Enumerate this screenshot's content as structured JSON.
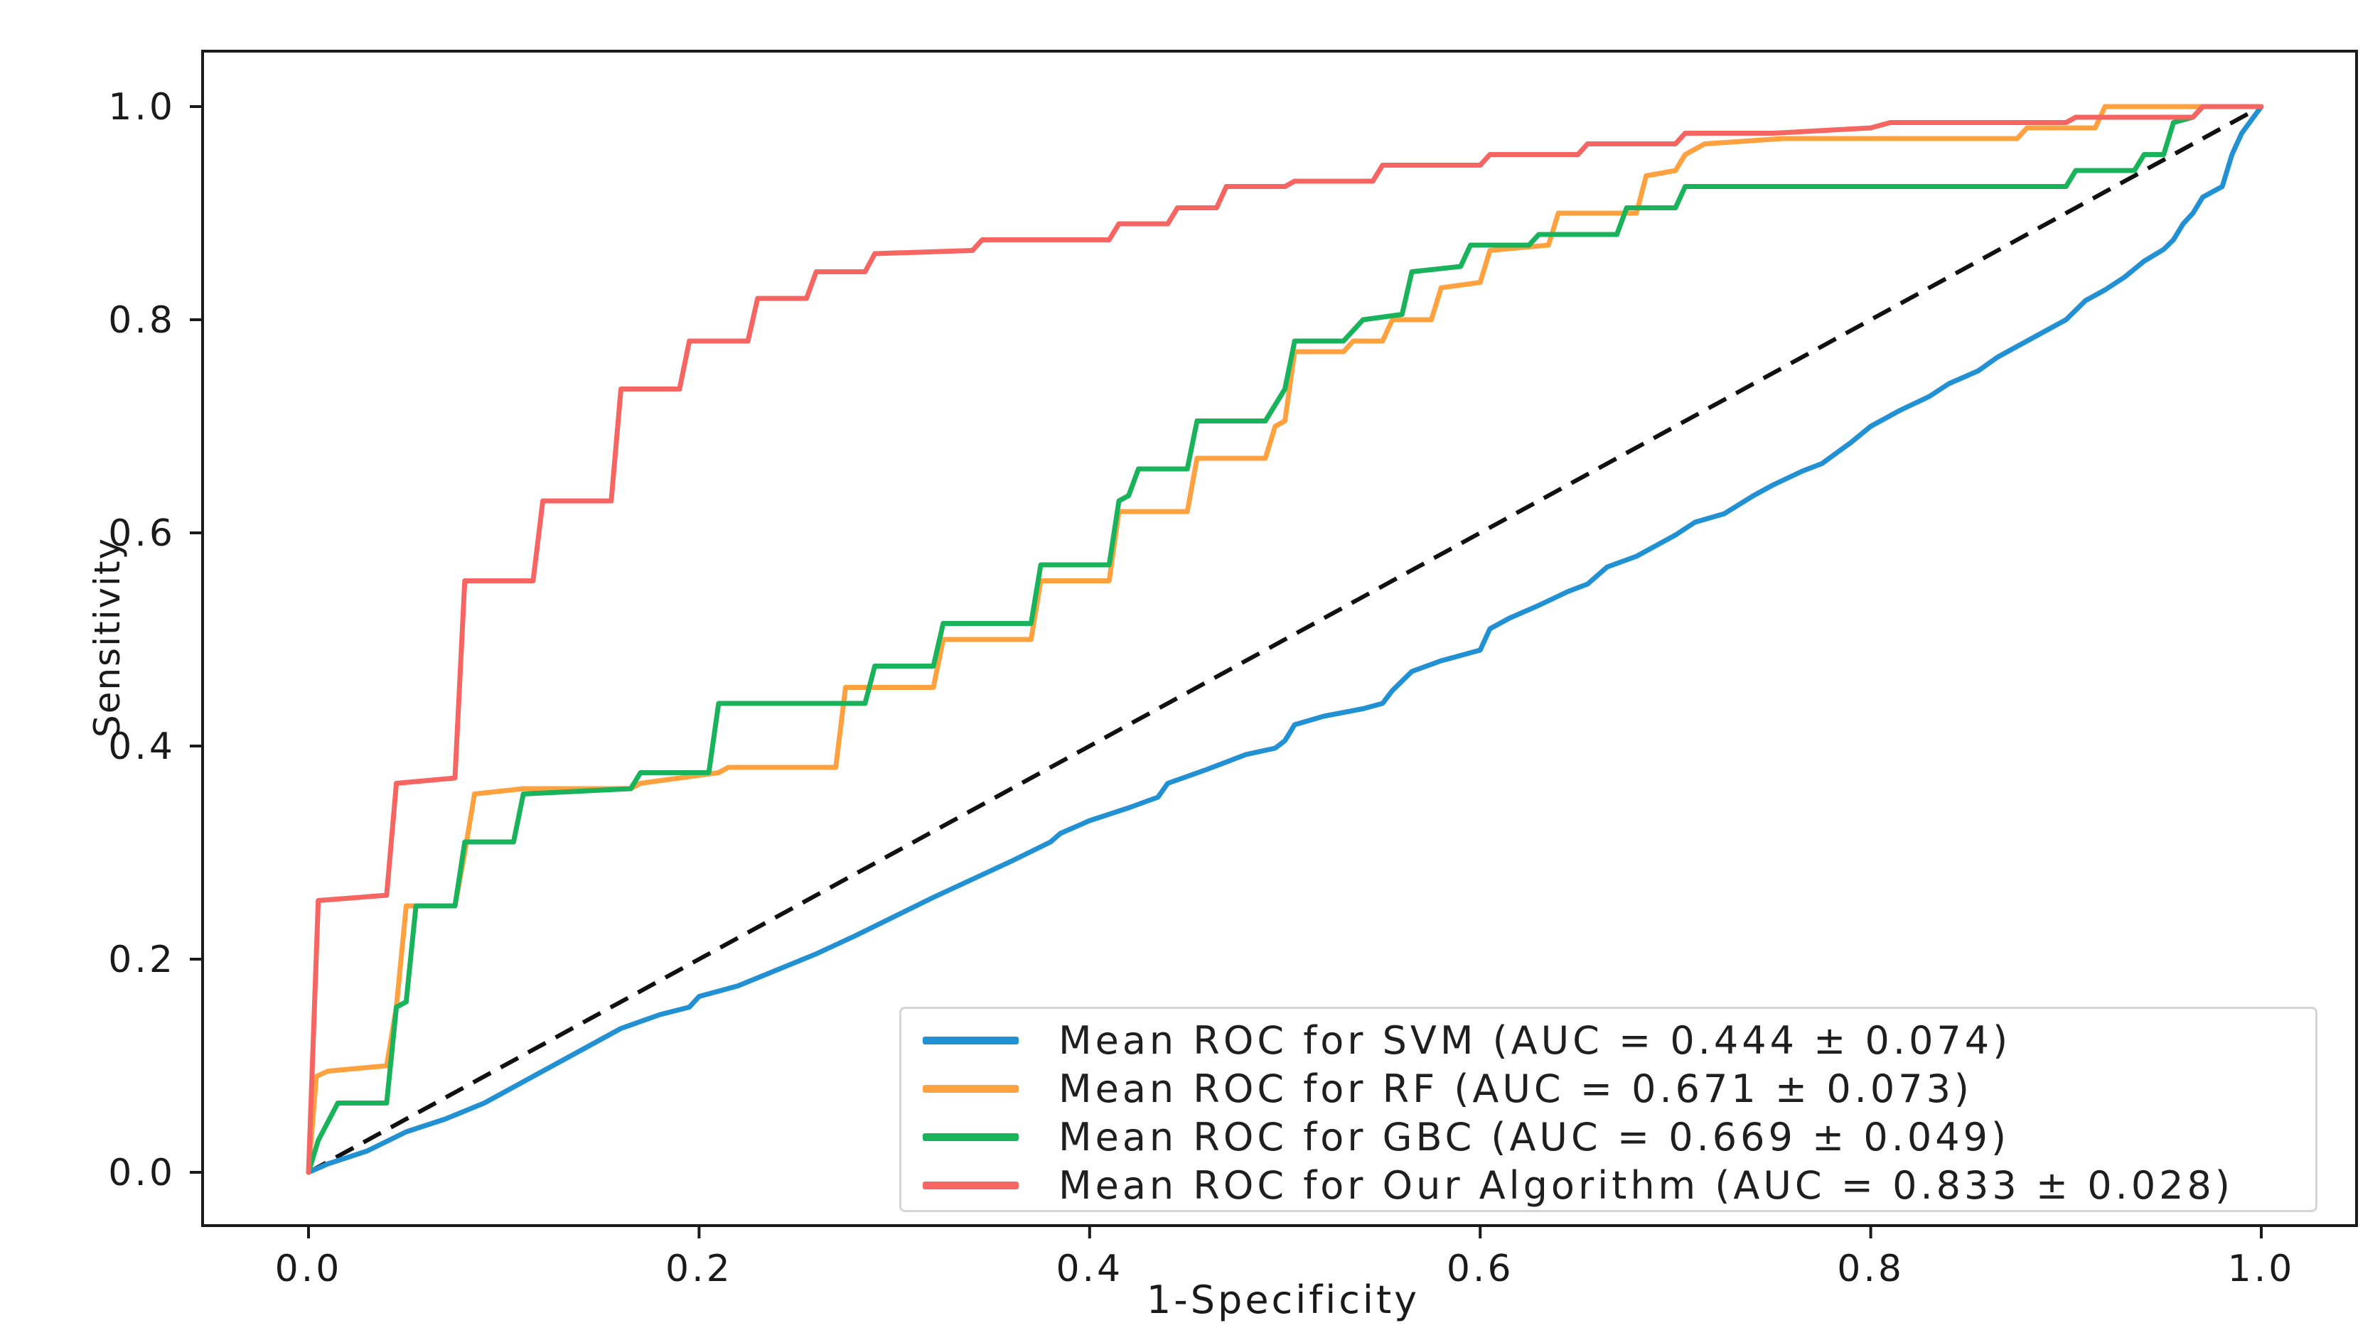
{
  "figure": {
    "background_color": "#ffffff",
    "spine_color": "#1a1a1a"
  },
  "axes": {
    "xlabel": "1-Specificity",
    "ylabel": "Sensitivity"
  },
  "chart_data": {
    "type": "line",
    "subtype": "roc-curves",
    "title": "",
    "xlabel": "1-Specificity",
    "ylabel": "Sensitivity",
    "xlim": [
      0,
      1
    ],
    "ylim": [
      0,
      1
    ],
    "xticks": [
      0.0,
      0.2,
      0.4,
      0.6,
      0.8,
      1.0
    ],
    "yticks": [
      0.0,
      0.2,
      0.4,
      0.6,
      0.8,
      1.0
    ],
    "grid": false,
    "legend_position": "lower right",
    "reference_line": {
      "name": "chance-diagonal",
      "style": "dashed",
      "color": "#111111",
      "points": [
        [
          0,
          0
        ],
        [
          1,
          1
        ]
      ]
    },
    "series": [
      {
        "name": "SVM",
        "label": "Mean ROC for SVM (AUC = 0.444 ± 0.074)",
        "auc": 0.444,
        "auc_std": 0.074,
        "color": "#2291d3",
        "points": [
          [
            0,
            0
          ],
          [
            0.01,
            0.008
          ],
          [
            0.03,
            0.02
          ],
          [
            0.05,
            0.038
          ],
          [
            0.07,
            0.05
          ],
          [
            0.09,
            0.065
          ],
          [
            0.1,
            0.075
          ],
          [
            0.12,
            0.095
          ],
          [
            0.14,
            0.115
          ],
          [
            0.16,
            0.135
          ],
          [
            0.18,
            0.148
          ],
          [
            0.195,
            0.155
          ],
          [
            0.2,
            0.165
          ],
          [
            0.22,
            0.175
          ],
          [
            0.24,
            0.19
          ],
          [
            0.26,
            0.205
          ],
          [
            0.28,
            0.222
          ],
          [
            0.3,
            0.24
          ],
          [
            0.32,
            0.258
          ],
          [
            0.34,
            0.275
          ],
          [
            0.36,
            0.292
          ],
          [
            0.38,
            0.31
          ],
          [
            0.385,
            0.318
          ],
          [
            0.4,
            0.33
          ],
          [
            0.42,
            0.342
          ],
          [
            0.435,
            0.352
          ],
          [
            0.44,
            0.365
          ],
          [
            0.46,
            0.378
          ],
          [
            0.48,
            0.392
          ],
          [
            0.495,
            0.398
          ],
          [
            0.5,
            0.405
          ],
          [
            0.505,
            0.42
          ],
          [
            0.52,
            0.428
          ],
          [
            0.54,
            0.435
          ],
          [
            0.55,
            0.44
          ],
          [
            0.555,
            0.452
          ],
          [
            0.565,
            0.47
          ],
          [
            0.58,
            0.48
          ],
          [
            0.6,
            0.49
          ],
          [
            0.605,
            0.51
          ],
          [
            0.615,
            0.52
          ],
          [
            0.63,
            0.532
          ],
          [
            0.645,
            0.545
          ],
          [
            0.655,
            0.552
          ],
          [
            0.665,
            0.568
          ],
          [
            0.68,
            0.578
          ],
          [
            0.7,
            0.598
          ],
          [
            0.71,
            0.61
          ],
          [
            0.725,
            0.618
          ],
          [
            0.74,
            0.635
          ],
          [
            0.75,
            0.645
          ],
          [
            0.765,
            0.658
          ],
          [
            0.775,
            0.665
          ],
          [
            0.79,
            0.685
          ],
          [
            0.8,
            0.7
          ],
          [
            0.815,
            0.715
          ],
          [
            0.83,
            0.728
          ],
          [
            0.84,
            0.74
          ],
          [
            0.855,
            0.752
          ],
          [
            0.865,
            0.765
          ],
          [
            0.875,
            0.775
          ],
          [
            0.89,
            0.79
          ],
          [
            0.9,
            0.8
          ],
          [
            0.91,
            0.818
          ],
          [
            0.92,
            0.828
          ],
          [
            0.93,
            0.84
          ],
          [
            0.94,
            0.855
          ],
          [
            0.95,
            0.866
          ],
          [
            0.955,
            0.875
          ],
          [
            0.96,
            0.89
          ],
          [
            0.965,
            0.9
          ],
          [
            0.97,
            0.915
          ],
          [
            0.975,
            0.92
          ],
          [
            0.98,
            0.925
          ],
          [
            0.985,
            0.955
          ],
          [
            0.99,
            0.975
          ],
          [
            1,
            1
          ]
        ]
      },
      {
        "name": "RF",
        "label": "Mean ROC for RF (AUC = 0.671 ± 0.073)",
        "auc": 0.671,
        "auc_std": 0.073,
        "color": "#ffa13f",
        "points": [
          [
            0,
            0
          ],
          [
            0.004,
            0.09
          ],
          [
            0.01,
            0.095
          ],
          [
            0.04,
            0.1
          ],
          [
            0.045,
            0.155
          ],
          [
            0.05,
            0.25
          ],
          [
            0.075,
            0.25
          ],
          [
            0.08,
            0.3
          ],
          [
            0.085,
            0.355
          ],
          [
            0.11,
            0.36
          ],
          [
            0.165,
            0.36
          ],
          [
            0.17,
            0.365
          ],
          [
            0.21,
            0.375
          ],
          [
            0.215,
            0.38
          ],
          [
            0.27,
            0.38
          ],
          [
            0.275,
            0.455
          ],
          [
            0.32,
            0.455
          ],
          [
            0.325,
            0.5
          ],
          [
            0.37,
            0.5
          ],
          [
            0.375,
            0.555
          ],
          [
            0.41,
            0.555
          ],
          [
            0.415,
            0.62
          ],
          [
            0.45,
            0.62
          ],
          [
            0.455,
            0.67
          ],
          [
            0.49,
            0.67
          ],
          [
            0.495,
            0.7
          ],
          [
            0.5,
            0.705
          ],
          [
            0.505,
            0.77
          ],
          [
            0.53,
            0.77
          ],
          [
            0.535,
            0.78
          ],
          [
            0.55,
            0.78
          ],
          [
            0.555,
            0.8
          ],
          [
            0.575,
            0.8
          ],
          [
            0.58,
            0.83
          ],
          [
            0.6,
            0.835
          ],
          [
            0.605,
            0.865
          ],
          [
            0.635,
            0.87
          ],
          [
            0.64,
            0.9
          ],
          [
            0.68,
            0.9
          ],
          [
            0.685,
            0.935
          ],
          [
            0.7,
            0.94
          ],
          [
            0.705,
            0.955
          ],
          [
            0.715,
            0.965
          ],
          [
            0.755,
            0.97
          ],
          [
            0.875,
            0.97
          ],
          [
            0.88,
            0.98
          ],
          [
            0.915,
            0.98
          ],
          [
            0.92,
            1.0
          ],
          [
            1,
            1
          ]
        ]
      },
      {
        "name": "GBC",
        "label": "Mean ROC for GBC (AUC = 0.669 ± 0.049)",
        "auc": 0.669,
        "auc_std": 0.049,
        "color": "#19b35b",
        "points": [
          [
            0,
            0
          ],
          [
            0.005,
            0.03
          ],
          [
            0.015,
            0.065
          ],
          [
            0.04,
            0.065
          ],
          [
            0.045,
            0.155
          ],
          [
            0.05,
            0.16
          ],
          [
            0.055,
            0.25
          ],
          [
            0.075,
            0.25
          ],
          [
            0.08,
            0.31
          ],
          [
            0.105,
            0.31
          ],
          [
            0.11,
            0.355
          ],
          [
            0.165,
            0.36
          ],
          [
            0.17,
            0.375
          ],
          [
            0.205,
            0.375
          ],
          [
            0.21,
            0.44
          ],
          [
            0.285,
            0.44
          ],
          [
            0.29,
            0.475
          ],
          [
            0.32,
            0.475
          ],
          [
            0.325,
            0.515
          ],
          [
            0.37,
            0.515
          ],
          [
            0.375,
            0.57
          ],
          [
            0.41,
            0.57
          ],
          [
            0.415,
            0.63
          ],
          [
            0.42,
            0.635
          ],
          [
            0.425,
            0.66
          ],
          [
            0.45,
            0.66
          ],
          [
            0.455,
            0.705
          ],
          [
            0.49,
            0.705
          ],
          [
            0.5,
            0.735
          ],
          [
            0.505,
            0.78
          ],
          [
            0.53,
            0.78
          ],
          [
            0.54,
            0.8
          ],
          [
            0.56,
            0.805
          ],
          [
            0.565,
            0.845
          ],
          [
            0.59,
            0.85
          ],
          [
            0.595,
            0.87
          ],
          [
            0.625,
            0.87
          ],
          [
            0.63,
            0.88
          ],
          [
            0.67,
            0.88
          ],
          [
            0.675,
            0.905
          ],
          [
            0.7,
            0.905
          ],
          [
            0.705,
            0.925
          ],
          [
            0.9,
            0.925
          ],
          [
            0.905,
            0.94
          ],
          [
            0.935,
            0.94
          ],
          [
            0.94,
            0.955
          ],
          [
            0.95,
            0.955
          ],
          [
            0.955,
            0.985
          ],
          [
            0.965,
            0.99
          ],
          [
            0.97,
            1.0
          ],
          [
            1,
            1
          ]
        ]
      },
      {
        "name": "Our Algorithm",
        "label": "Mean ROC for Our Algorithm (AUC = 0.833 ± 0.028)",
        "auc": 0.833,
        "auc_std": 0.028,
        "color": "#f76562",
        "points": [
          [
            0,
            0
          ],
          [
            0.005,
            0.255
          ],
          [
            0.04,
            0.26
          ],
          [
            0.045,
            0.365
          ],
          [
            0.075,
            0.37
          ],
          [
            0.08,
            0.555
          ],
          [
            0.115,
            0.555
          ],
          [
            0.12,
            0.63
          ],
          [
            0.155,
            0.63
          ],
          [
            0.16,
            0.735
          ],
          [
            0.19,
            0.735
          ],
          [
            0.195,
            0.78
          ],
          [
            0.225,
            0.78
          ],
          [
            0.23,
            0.82
          ],
          [
            0.255,
            0.82
          ],
          [
            0.26,
            0.845
          ],
          [
            0.285,
            0.845
          ],
          [
            0.29,
            0.862
          ],
          [
            0.34,
            0.865
          ],
          [
            0.345,
            0.875
          ],
          [
            0.41,
            0.875
          ],
          [
            0.415,
            0.89
          ],
          [
            0.44,
            0.89
          ],
          [
            0.445,
            0.905
          ],
          [
            0.465,
            0.905
          ],
          [
            0.47,
            0.925
          ],
          [
            0.5,
            0.925
          ],
          [
            0.505,
            0.93
          ],
          [
            0.545,
            0.93
          ],
          [
            0.55,
            0.945
          ],
          [
            0.6,
            0.945
          ],
          [
            0.605,
            0.955
          ],
          [
            0.65,
            0.955
          ],
          [
            0.655,
            0.965
          ],
          [
            0.7,
            0.965
          ],
          [
            0.705,
            0.975
          ],
          [
            0.75,
            0.975
          ],
          [
            0.8,
            0.98
          ],
          [
            0.81,
            0.985
          ],
          [
            0.9,
            0.985
          ],
          [
            0.905,
            0.99
          ],
          [
            0.965,
            0.99
          ],
          [
            0.97,
            1.0
          ],
          [
            1,
            1
          ]
        ]
      }
    ]
  }
}
